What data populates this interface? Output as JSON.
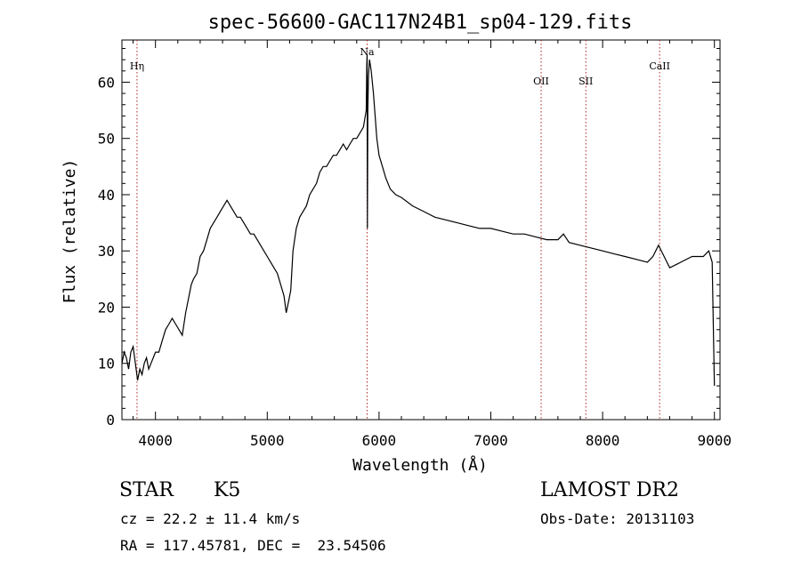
{
  "chart_data": {
    "type": "line",
    "title": "spec-56600-GAC117N24B1_sp04-129.fits",
    "xlabel": "Wavelength (Å)",
    "ylabel": "Flux (relative)",
    "xlim": [
      3700,
      9050
    ],
    "ylim": [
      0,
      67.5
    ],
    "xticks": [
      4000,
      5000,
      6000,
      7000,
      8000,
      9000
    ],
    "yticks": [
      0,
      10,
      20,
      30,
      40,
      50,
      60
    ],
    "grid": false,
    "series": [
      {
        "x": [
          3700,
          3720,
          3740,
          3760,
          3780,
          3800,
          3820,
          3840,
          3860,
          3880,
          3900,
          3920,
          3940,
          3960,
          3980,
          4000,
          4030,
          4060,
          4090,
          4120,
          4150,
          4180,
          4210,
          4240,
          4270,
          4300,
          4320,
          4340,
          4370,
          4400,
          4430,
          4460,
          4490,
          4520,
          4550,
          4580,
          4610,
          4640,
          4670,
          4700,
          4730,
          4760,
          4790,
          4820,
          4850,
          4880,
          4910,
          4940,
          4970,
          5000,
          5030,
          5060,
          5090,
          5120,
          5150,
          5170,
          5190,
          5210,
          5230,
          5260,
          5290,
          5320,
          5350,
          5380,
          5410,
          5440,
          5470,
          5500,
          5530,
          5560,
          5590,
          5620,
          5650,
          5680,
          5710,
          5740,
          5770,
          5800,
          5830,
          5860,
          5885,
          5890,
          5893,
          5896,
          5900,
          5905,
          5915,
          5930,
          5950,
          5965,
          5980,
          6000,
          6030,
          6060,
          6100,
          6150,
          6200,
          6300,
          6400,
          6500,
          6600,
          6700,
          6800,
          6900,
          7000,
          7100,
          7200,
          7300,
          7400,
          7500,
          7600,
          7650,
          7700,
          7800,
          7900,
          8000,
          8100,
          8200,
          8300,
          8400,
          8450,
          8500,
          8550,
          8600,
          8700,
          8800,
          8900,
          8950,
          8980,
          9000
        ],
        "y": [
          10,
          12,
          11,
          9,
          12,
          13,
          10,
          7,
          9,
          8,
          10,
          11,
          9,
          10,
          11,
          12,
          12,
          14,
          16,
          17,
          18,
          17,
          16,
          15,
          19,
          22,
          24,
          25,
          26,
          29,
          30,
          32,
          34,
          35,
          36,
          37,
          38,
          39,
          38,
          37,
          36,
          36,
          35,
          34,
          33,
          33,
          32,
          31,
          30,
          29,
          28,
          27,
          26,
          24,
          22,
          19,
          21,
          23,
          30,
          34,
          36,
          37,
          38,
          40,
          41,
          42,
          44,
          45,
          45,
          46,
          47,
          47,
          48,
          49,
          48,
          49,
          50,
          50,
          51,
          52,
          55,
          63,
          65,
          34,
          55,
          61,
          64,
          62,
          58,
          54,
          50,
          47,
          45,
          43,
          41,
          40,
          39.5,
          38,
          37,
          36,
          35.5,
          35,
          34.5,
          34,
          34,
          33.5,
          33,
          33,
          32.5,
          32,
          32,
          33,
          31.5,
          31,
          30.5,
          30,
          29.5,
          29,
          28.5,
          28,
          29,
          31,
          29,
          27,
          28,
          29,
          29,
          30,
          28,
          6
        ]
      }
    ],
    "lines": [
      {
        "label": "Hη",
        "x": 3835
      },
      {
        "label": "Na",
        "x": 5893
      },
      {
        "label": "OII",
        "x": 7450
      },
      {
        "label": "SII",
        "x": 7850
      },
      {
        "label": "CaII",
        "x": 8510
      }
    ]
  },
  "info": {
    "object": "STAR",
    "subclass": "K5",
    "survey": "LAMOST DR2",
    "cz": "cz = 22.2 ± 11.4 km/s",
    "obs_date": "Obs-Date: 20131103",
    "coords": "RA = 117.45781, DEC =  23.54506"
  }
}
